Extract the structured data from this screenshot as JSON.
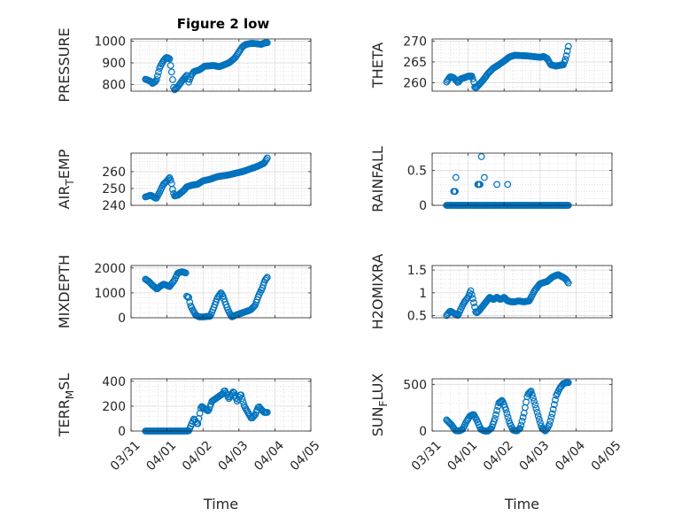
{
  "figure": {
    "title": "Figure 2 low",
    "marker_color": "#0072BD",
    "grid": true,
    "minor_grid": true
  },
  "x_axis": {
    "ticks": [
      "03/31",
      "04/01",
      "04/02",
      "04/03",
      "04/04",
      "04/05"
    ],
    "range_days": [
      0,
      5
    ],
    "xlabel": "Time"
  },
  "chart_data": [
    {
      "type": "scatter",
      "id": "pressure",
      "ylabel": "PRESSURE",
      "ylim": [
        770,
        1010
      ],
      "yticks": [
        800,
        900,
        1000
      ],
      "ytick_labels": [
        "800",
        "900",
        "1000"
      ],
      "knots_x": [
        0.4,
        0.55,
        0.6,
        0.7,
        0.8,
        0.9,
        0.98,
        1.07,
        1.14,
        1.18,
        1.2,
        1.3,
        1.42,
        1.55,
        1.6,
        1.68,
        1.75,
        1.9,
        2.05,
        2.3,
        2.45,
        2.6,
        2.72,
        2.8,
        2.9,
        3.0,
        3.1,
        3.2,
        3.35,
        3.5,
        3.62,
        3.72,
        3.8
      ],
      "knots_y": [
        825,
        815,
        805,
        818,
        880,
        910,
        925,
        920,
        845,
        790,
        775,
        790,
        818,
        843,
        810,
        845,
        860,
        868,
        885,
        888,
        882,
        892,
        900,
        910,
        925,
        950,
        975,
        985,
        990,
        988,
        985,
        992,
        993
      ],
      "step": 0.028
    },
    {
      "type": "scatter",
      "id": "theta",
      "ylabel": "THETA",
      "ylim": [
        258,
        270.5
      ],
      "yticks": [
        260,
        265,
        270
      ],
      "ytick_labels": [
        "260",
        "265",
        "270"
      ],
      "knots_x": [
        0.4,
        0.5,
        0.6,
        0.72,
        0.8,
        0.9,
        1.0,
        1.1,
        1.15,
        1.18,
        1.22,
        1.32,
        1.45,
        1.55,
        1.7,
        1.85,
        2.0,
        2.15,
        2.3,
        2.5,
        2.7,
        2.9,
        3.0,
        3.1,
        3.2,
        3.3,
        3.45,
        3.55,
        3.65,
        3.72,
        3.8
      ],
      "knots_y": [
        260.2,
        261.5,
        261.2,
        260.0,
        261.0,
        261.2,
        261.6,
        261.6,
        260.5,
        259.0,
        258.8,
        259.7,
        261.0,
        262.2,
        263.5,
        264.3,
        265.2,
        266.2,
        266.6,
        266.5,
        266.4,
        266.2,
        266.1,
        266.3,
        265.8,
        264.3,
        264.0,
        264.2,
        264.3,
        266.0,
        269.2
      ],
      "step": 0.028
    },
    {
      "type": "scatter",
      "id": "air_temp",
      "ylabel": "AIR",
      "ylabel_sub": "T",
      "ylabel_tail": "EMP",
      "ylim": [
        240,
        271
      ],
      "yticks": [
        240,
        250,
        260
      ],
      "ytick_labels": [
        "240",
        "250",
        "260"
      ],
      "knots_x": [
        0.4,
        0.55,
        0.7,
        0.8,
        0.9,
        1.0,
        1.07,
        1.12,
        1.15,
        1.2,
        1.3,
        1.45,
        1.55,
        1.7,
        1.85,
        2.0,
        2.2,
        2.4,
        2.55,
        2.7,
        2.9,
        3.1,
        3.3,
        3.5,
        3.6,
        3.7,
        3.8
      ],
      "knots_y": [
        245.0,
        246.0,
        244.0,
        248.0,
        252.5,
        254.5,
        256.5,
        254.0,
        250.0,
        245.5,
        246.0,
        248.5,
        251.0,
        252.0,
        252.5,
        254.5,
        255.5,
        257.0,
        257.5,
        258.0,
        259.0,
        260.0,
        261.5,
        263.0,
        264.0,
        265.0,
        268.5
      ],
      "step": 0.028
    },
    {
      "type": "scatter",
      "id": "rainfall",
      "ylabel": "RAINFALL",
      "ylim": [
        0,
        0.75
      ],
      "yticks": [
        0,
        0.5
      ],
      "ytick_labels": [
        "0",
        "0.5"
      ],
      "baseline_x": [
        0.4,
        3.8
      ],
      "baseline_y": 0,
      "step": 0.028,
      "points": [
        [
          0.6,
          0.2
        ],
        [
          0.62,
          0.2
        ],
        [
          0.64,
          0.2
        ],
        [
          0.66,
          0.4
        ],
        [
          1.27,
          0.3
        ],
        [
          1.29,
          0.3
        ],
        [
          1.31,
          0.3
        ],
        [
          1.33,
          0.3
        ],
        [
          1.37,
          0.7
        ],
        [
          1.45,
          0.4
        ],
        [
          1.8,
          0.3
        ],
        [
          2.1,
          0.3
        ]
      ]
    },
    {
      "type": "scatter",
      "id": "mixdepth",
      "ylabel": "MIXDEPTH",
      "ylim": [
        0,
        2100
      ],
      "yticks": [
        0,
        1000,
        2000
      ],
      "ytick_labels": [
        "0",
        "1000",
        "2000"
      ],
      "knots_x": [
        0.4,
        0.5,
        0.6,
        0.72,
        0.8,
        0.9,
        1.0,
        1.07,
        1.12,
        1.2,
        1.3,
        1.42,
        1.52,
        1.55,
        1.6,
        1.65,
        1.72,
        1.8,
        1.9,
        2.0,
        2.1,
        2.2,
        2.3,
        2.4,
        2.5,
        2.55,
        2.62,
        2.7,
        2.8,
        2.9,
        3.0,
        3.1,
        3.2,
        3.3,
        3.35,
        3.45,
        3.55,
        3.65,
        3.72,
        3.8
      ],
      "knots_y": [
        1550,
        1450,
        1300,
        1150,
        1250,
        1350,
        1300,
        1250,
        1350,
        1500,
        1800,
        1850,
        1800,
        800,
        850,
        500,
        300,
        100,
        30,
        30,
        50,
        60,
        400,
        800,
        1000,
        900,
        600,
        300,
        30,
        100,
        150,
        200,
        250,
        300,
        350,
        500,
        900,
        1200,
        1500,
        1650
      ],
      "step": 0.028
    },
    {
      "type": "scatter",
      "id": "h2omixra",
      "ylabel": "H2OMIXRA",
      "ylim": [
        0.45,
        1.6
      ],
      "yticks": [
        0.5,
        1.0,
        1.5
      ],
      "ytick_labels": [
        "0.5",
        "1",
        "1.5"
      ],
      "knots_x": [
        0.4,
        0.5,
        0.6,
        0.72,
        0.8,
        0.9,
        1.0,
        1.07,
        1.12,
        1.18,
        1.22,
        1.3,
        1.4,
        1.5,
        1.6,
        1.7,
        1.8,
        1.9,
        2.0,
        2.1,
        2.2,
        2.3,
        2.4,
        2.55,
        2.7,
        2.85,
        3.0,
        3.2,
        3.35,
        3.5,
        3.62,
        3.72,
        3.8
      ],
      "knots_y": [
        0.5,
        0.6,
        0.55,
        0.5,
        0.65,
        0.8,
        0.9,
        1.05,
        0.9,
        0.7,
        0.55,
        0.6,
        0.7,
        0.8,
        0.9,
        0.85,
        0.9,
        0.85,
        0.9,
        0.82,
        0.8,
        0.8,
        0.82,
        0.8,
        0.82,
        1.05,
        1.2,
        1.25,
        1.35,
        1.4,
        1.35,
        1.3,
        1.2
      ],
      "step": 0.028
    },
    {
      "type": "scatter",
      "id": "terr_msl",
      "ylabel": "TERR",
      "ylabel_sub": "M",
      "ylabel_tail": "SL",
      "ylim": [
        0,
        420
      ],
      "yticks": [
        0,
        200,
        400
      ],
      "ytick_labels": [
        "0",
        "200",
        "400"
      ],
      "knots_x": [
        0.4,
        0.8,
        1.2,
        1.6,
        1.75,
        1.85,
        1.95,
        2.05,
        2.15,
        2.25,
        2.35,
        2.45,
        2.55,
        2.6,
        2.72,
        2.85,
        2.95,
        3.05,
        3.15,
        3.25,
        3.35,
        3.45,
        3.55,
        3.6,
        3.7,
        3.8
      ],
      "knots_y": [
        0,
        0,
        0,
        0,
        100,
        50,
        200,
        180,
        160,
        240,
        260,
        280,
        300,
        330,
        260,
        320,
        240,
        300,
        200,
        150,
        100,
        130,
        200,
        180,
        150,
        150
      ],
      "step": 0.028
    },
    {
      "type": "scatter",
      "id": "sun_flux",
      "ylabel": "SUN",
      "ylabel_sub": "F",
      "ylabel_tail": "LUX",
      "ylim": [
        0,
        560
      ],
      "yticks": [
        0,
        500
      ],
      "ytick_labels": [
        "0",
        "500"
      ],
      "knots_x": [
        0.4,
        0.55,
        0.65,
        0.75,
        0.85,
        0.95,
        1.05,
        1.15,
        1.25,
        1.35,
        1.45,
        1.55,
        1.65,
        1.75,
        1.85,
        1.95,
        2.05,
        2.15,
        2.25,
        2.35,
        2.45,
        2.55,
        2.65,
        2.75,
        2.85,
        2.95,
        3.05,
        3.15,
        3.25,
        3.35,
        3.45,
        3.55,
        3.65,
        3.75,
        3.8
      ],
      "knots_y": [
        120,
        60,
        5,
        0,
        20,
        100,
        160,
        180,
        110,
        20,
        0,
        0,
        30,
        140,
        300,
        330,
        230,
        90,
        10,
        0,
        30,
        180,
        390,
        430,
        300,
        160,
        30,
        0,
        60,
        200,
        380,
        460,
        510,
        520,
        520
      ],
      "step": 0.028
    }
  ]
}
